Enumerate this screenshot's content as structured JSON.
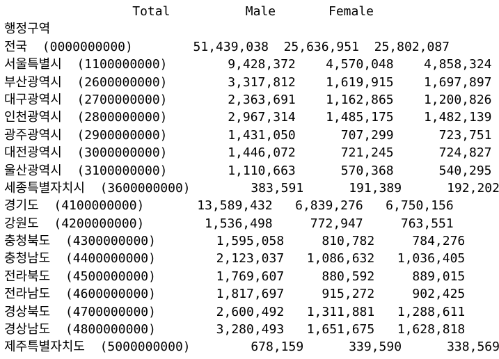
{
  "output": {
    "header": "                 Total          Male       Female",
    "region_label": "행정구역",
    "rows": [
      "전국  (0000000000)        51,439,038  25,636,951  25,802,087",
      "서울특별시  (1100000000)        9,428,372    4,570,048    4,858,324",
      "부산광역시  (2600000000)        3,317,812    1,619,915    1,697,897",
      "대구광역시  (2700000000)        2,363,691    1,162,865    1,200,826",
      "인천광역시  (2800000000)        2,967,314    1,485,175    1,482,139",
      "광주광역시  (2900000000)        1,431,050      707,299      723,751",
      "대전광역시  (3000000000)        1,446,072      721,245      724,827",
      "울산광역시  (3100000000)        1,110,663      570,368      540,295",
      "세종특별자치시  (3600000000)        383,591      191,389      192,202",
      "경기도  (4100000000)       13,589,432   6,839,276   6,750,156",
      "강원도  (4200000000)        1,536,498     772,947     763,551",
      "충청북도  (4300000000)        1,595,058     810,782     784,276",
      "충청남도  (4400000000)        2,123,037   1,086,632   1,036,405",
      "전라북도  (4500000000)        1,769,607     880,592     889,015",
      "전라남도  (4600000000)        1,817,697     915,272     902,425",
      "경상북도  (4700000000)        2,600,492   1,311,881   1,288,611",
      "경상남도  (4800000000)        3,280,493   1,651,675   1,628,818",
      "제주특별자치도  (5000000000)        678,159      339,590      338,569"
    ]
  }
}
